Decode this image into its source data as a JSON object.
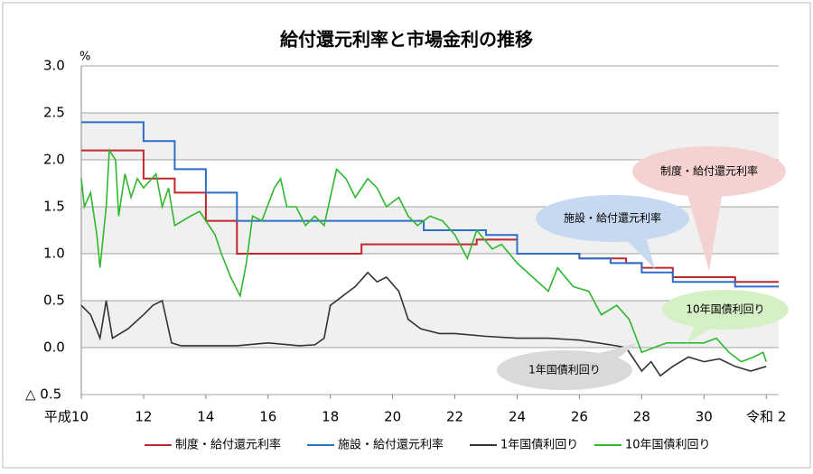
{
  "chart_data": {
    "type": "line",
    "title": "給付還元利率と市場金利の推移",
    "ylabel": "%",
    "xlim": [
      10,
      32.4
    ],
    "xticks": [
      {
        "value": 10,
        "label": "平成10"
      },
      12,
      14,
      16,
      18,
      20,
      22,
      24,
      26,
      28,
      30,
      {
        "value": 32,
        "label": "令和 2"
      }
    ],
    "ylim": [
      -0.5,
      3.0
    ],
    "yticks": [
      {
        "value": -0.5,
        "label": "△ 0.5"
      },
      {
        "value": 0,
        "label": "0.0"
      },
      0.5,
      {
        "value": 1,
        "label": "1.0"
      },
      1.5,
      {
        "value": 2,
        "label": "2.0"
      },
      2.5,
      {
        "value": 3,
        "label": "3.0"
      }
    ],
    "grid": true,
    "legend": "bottom",
    "series": [
      {
        "name": "制度・給付還元利率",
        "color": "#c0272d",
        "x": [
          10,
          12,
          12,
          13,
          13,
          14,
          14,
          15,
          15,
          19,
          19,
          22.7,
          22.7,
          24,
          24,
          26,
          26,
          27.5,
          27.5,
          28,
          28,
          29,
          29,
          31,
          31,
          32.4
        ],
        "values": [
          2.1,
          2.1,
          1.8,
          1.8,
          1.65,
          1.65,
          1.35,
          1.35,
          1.0,
          1.0,
          1.1,
          1.1,
          1.15,
          1.15,
          1.0,
          1.0,
          0.95,
          0.95,
          0.9,
          0.9,
          0.85,
          0.85,
          0.75,
          0.75,
          0.7,
          0.7
        ]
      },
      {
        "name": "施設・給付還元利率",
        "color": "#2e6ec7",
        "x": [
          10,
          12,
          12,
          13,
          13,
          14,
          14,
          15,
          15,
          21,
          21,
          23,
          23,
          24,
          24,
          26,
          26,
          27,
          27,
          28,
          28,
          29,
          29,
          31,
          31,
          32.4
        ],
        "values": [
          2.4,
          2.4,
          2.2,
          2.2,
          1.9,
          1.9,
          1.65,
          1.65,
          1.35,
          1.35,
          1.25,
          1.25,
          1.2,
          1.2,
          1.0,
          1.0,
          0.95,
          0.95,
          0.9,
          0.9,
          0.8,
          0.8,
          0.7,
          0.7,
          0.65,
          0.65
        ]
      },
      {
        "name": "1年国債利回り",
        "color": "#333333",
        "x": [
          10,
          10.3,
          10.6,
          10.8,
          11.0,
          11.5,
          12.0,
          12.3,
          12.6,
          12.9,
          13.2,
          14,
          15,
          16,
          17,
          17.5,
          17.8,
          18.0,
          18.4,
          18.8,
          19.2,
          19.5,
          19.8,
          20.2,
          20.5,
          20.9,
          21.5,
          22,
          23,
          24,
          25,
          26,
          27,
          27.5,
          28.0,
          28.3,
          28.6,
          29,
          29.5,
          30,
          30.5,
          31,
          31.5,
          32
        ],
        "values": [
          0.45,
          0.35,
          0.1,
          0.5,
          0.1,
          0.2,
          0.35,
          0.45,
          0.5,
          0.05,
          0.02,
          0.02,
          0.02,
          0.05,
          0.02,
          0.03,
          0.1,
          0.45,
          0.55,
          0.65,
          0.8,
          0.7,
          0.75,
          0.6,
          0.3,
          0.2,
          0.15,
          0.15,
          0.12,
          0.1,
          0.1,
          0.08,
          0.03,
          0.0,
          -0.25,
          -0.15,
          -0.3,
          -0.2,
          -0.1,
          -0.15,
          -0.12,
          -0.2,
          -0.25,
          -0.2
        ]
      },
      {
        "name": "10年国債利回り",
        "color": "#2eb82e",
        "x": [
          10,
          10.1,
          10.3,
          10.5,
          10.6,
          10.8,
          10.9,
          11.1,
          11.2,
          11.4,
          11.6,
          11.8,
          12,
          12.4,
          12.6,
          12.8,
          13,
          13.5,
          13.8,
          14,
          14.3,
          14.5,
          14.8,
          15.1,
          15.3,
          15.5,
          15.8,
          16.2,
          16.4,
          16.6,
          16.9,
          17.2,
          17.5,
          17.8,
          18.2,
          18.5,
          18.8,
          19.2,
          19.5,
          19.8,
          20.2,
          20.5,
          20.8,
          21.2,
          21.6,
          22.0,
          22.4,
          22.7,
          23.2,
          23.5,
          24.0,
          24.5,
          25.0,
          25.3,
          25.8,
          26.3,
          26.7,
          27.2,
          27.6,
          28.0,
          28.4,
          28.8,
          29.2,
          29.6,
          30.0,
          30.4,
          30.8,
          31.2,
          31.6,
          31.9,
          32.0
        ],
        "values": [
          1.8,
          1.5,
          1.65,
          1.2,
          0.85,
          1.5,
          2.1,
          2.0,
          1.4,
          1.85,
          1.6,
          1.8,
          1.7,
          1.85,
          1.5,
          1.7,
          1.3,
          1.4,
          1.45,
          1.35,
          1.2,
          1.0,
          0.75,
          0.55,
          0.9,
          1.4,
          1.35,
          1.7,
          1.8,
          1.5,
          1.5,
          1.3,
          1.4,
          1.3,
          1.9,
          1.8,
          1.6,
          1.8,
          1.7,
          1.5,
          1.6,
          1.4,
          1.3,
          1.4,
          1.35,
          1.2,
          0.95,
          1.25,
          1.05,
          1.1,
          0.9,
          0.75,
          0.6,
          0.85,
          0.65,
          0.6,
          0.35,
          0.45,
          0.3,
          -0.05,
          0.0,
          0.05,
          0.05,
          0.05,
          0.05,
          0.1,
          -0.05,
          -0.15,
          -0.1,
          -0.05,
          -0.15
        ]
      }
    ],
    "annotations": [
      "制度・給付還元利率",
      "施設・給付還元利率",
      "10年国債利回り",
      "1年国債利回り"
    ]
  }
}
